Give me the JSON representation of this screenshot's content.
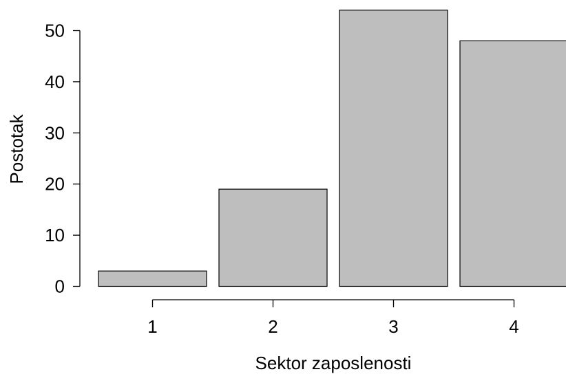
{
  "chart_data": {
    "type": "bar",
    "categories": [
      "1",
      "2",
      "3",
      "4"
    ],
    "values": [
      3,
      19,
      54,
      48
    ],
    "xlabel": "Sektor zaposlenosti",
    "ylabel": "Postotak",
    "ylim": [
      0,
      50
    ],
    "yticks": [
      "0",
      "10",
      "20",
      "30",
      "40",
      "50"
    ],
    "bar_color": "#bebebe",
    "grid": false
  }
}
